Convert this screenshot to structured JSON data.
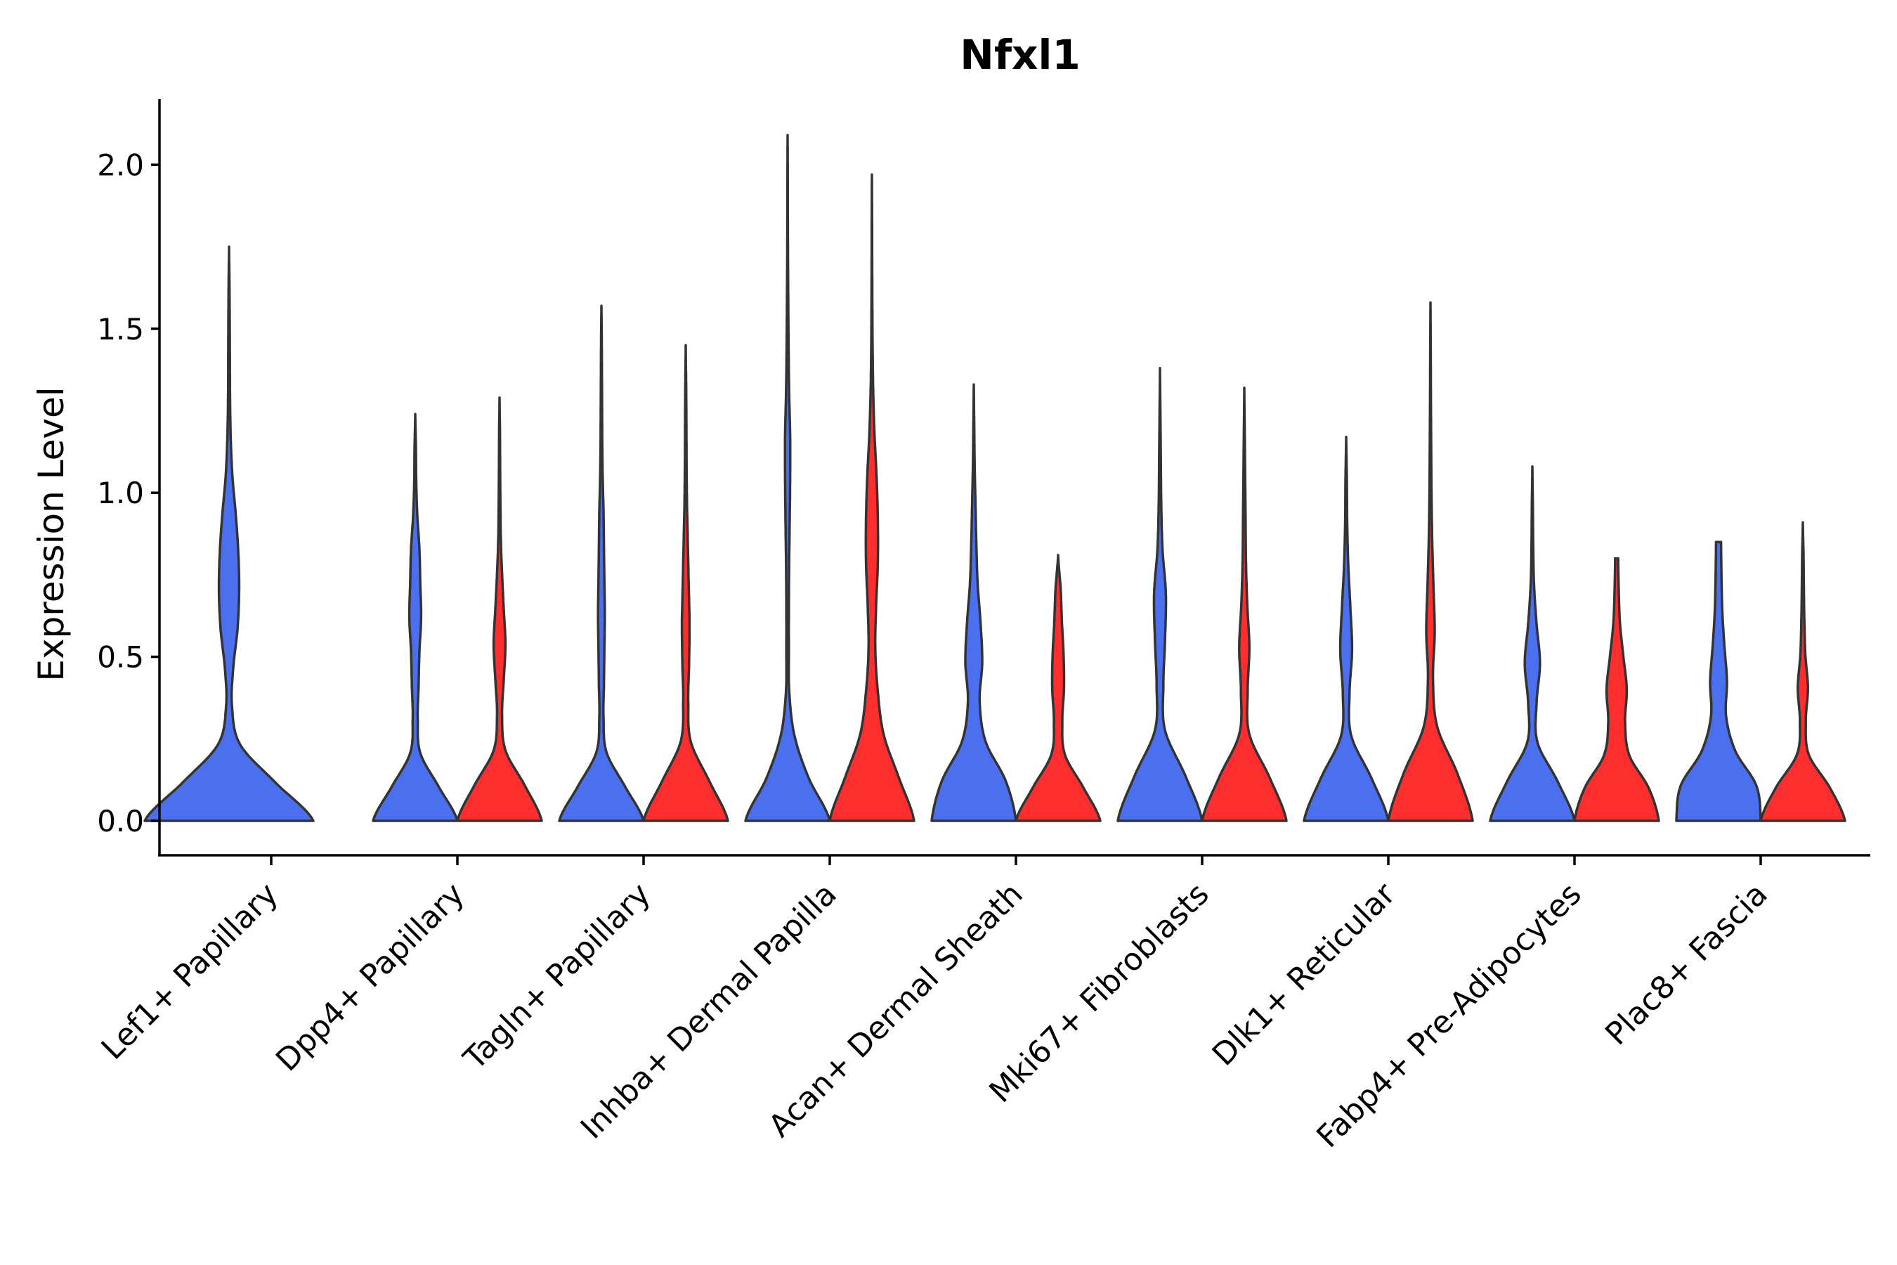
{
  "chart_data": {
    "type": "violin",
    "title": "Nfxl1",
    "xlabel": "",
    "ylabel": "Expression Level",
    "ylim": [
      -0.105,
      2.2
    ],
    "yticks": [
      0.0,
      0.5,
      1.0,
      1.5,
      2.0
    ],
    "ytick_labels": [
      "0.0",
      "0.5",
      "1.0",
      "1.5",
      "2.0"
    ],
    "categories": [
      "Lef1+ Papillary",
      "Dpp4+ Papillary",
      "Tagln+ Papillary",
      "Inhba+ Dermal Papilla",
      "Acan+ Dermal Sheath",
      "Mki67+ Fibroblasts",
      "Dlk1+ Reticular",
      "Fabp4+ Pre-Adipocytes",
      "Plac8+ Fascia"
    ],
    "colors": {
      "blue": "#4A70F0",
      "red": "#FF2E2E",
      "outline": "#333333"
    },
    "violins": [
      {
        "category": 0,
        "color": "blue",
        "max": 1.75,
        "widths": [
          1.0,
          0.55,
          0.13,
          0.035,
          0.05,
          0.1,
          0.12,
          0.11,
          0.08,
          0.04,
          0.02,
          0.012,
          0.01,
          0.008,
          0.005,
          0
        ]
      },
      {
        "category": 1,
        "color": "blue",
        "max": 1.24,
        "widths": [
          0.5,
          0.28,
          0.06,
          0.03,
          0.04,
          0.05,
          0.07,
          0.06,
          0.05,
          0.025,
          0.012,
          0.008,
          0
        ]
      },
      {
        "category": 1,
        "color": "red",
        "max": 1.29,
        "widths": [
          0.5,
          0.3,
          0.07,
          0.03,
          0.05,
          0.07,
          0.05,
          0.03,
          0.015,
          0.01,
          0.007,
          0.005,
          0
        ]
      },
      {
        "category": 2,
        "color": "blue",
        "max": 1.57,
        "widths": [
          0.5,
          0.28,
          0.06,
          0.025,
          0.03,
          0.035,
          0.04,
          0.035,
          0.03,
          0.025,
          0.015,
          0.01,
          0.008,
          0.006,
          0.004,
          0
        ]
      },
      {
        "category": 2,
        "color": "red",
        "max": 1.45,
        "widths": [
          0.5,
          0.28,
          0.06,
          0.03,
          0.04,
          0.045,
          0.035,
          0.025,
          0.015,
          0.01,
          0.008,
          0.005,
          0
        ]
      },
      {
        "category": 3,
        "color": "blue",
        "max": 2.09,
        "widths": [
          0.5,
          0.25,
          0.08,
          0.02,
          0.015,
          0.015,
          0.018,
          0.025,
          0.03,
          0.03,
          0.018,
          0.012,
          0.008,
          0.005,
          0.003,
          0.002,
          0
        ]
      },
      {
        "category": 3,
        "color": "red",
        "max": 1.97,
        "widths": [
          0.5,
          0.32,
          0.14,
          0.07,
          0.04,
          0.05,
          0.07,
          0.07,
          0.055,
          0.03,
          0.015,
          0.008,
          0.005,
          0.003,
          0.002,
          0
        ]
      },
      {
        "category": 4,
        "color": "blue",
        "max": 1.33,
        "widths": [
          0.5,
          0.38,
          0.14,
          0.07,
          0.1,
          0.08,
          0.045,
          0.03,
          0.02,
          0.01,
          0.005,
          0
        ]
      },
      {
        "category": 4,
        "color": "red",
        "max": 0.81,
        "widths": [
          0.5,
          0.3,
          0.08,
          0.05,
          0.07,
          0.065,
          0.045,
          0.03,
          0
        ]
      },
      {
        "category": 5,
        "color": "blue",
        "max": 1.38,
        "widths": [
          0.5,
          0.3,
          0.06,
          0.04,
          0.06,
          0.07,
          0.03,
          0.015,
          0.01,
          0.005,
          0
        ]
      },
      {
        "category": 5,
        "color": "red",
        "max": 1.32,
        "widths": [
          0.5,
          0.3,
          0.06,
          0.04,
          0.06,
          0.035,
          0.02,
          0.015,
          0.01,
          0.005,
          0
        ]
      },
      {
        "category": 6,
        "color": "blue",
        "max": 1.17,
        "widths": [
          0.5,
          0.3,
          0.06,
          0.04,
          0.07,
          0.05,
          0.025,
          0.012,
          0.008,
          0
        ]
      },
      {
        "category": 6,
        "color": "red",
        "max": 1.58,
        "widths": [
          0.5,
          0.32,
          0.08,
          0.03,
          0.05,
          0.035,
          0.02,
          0.012,
          0.008,
          0.005,
          0.003,
          0
        ]
      },
      {
        "category": 7,
        "color": "blue",
        "max": 1.08,
        "widths": [
          0.5,
          0.3,
          0.06,
          0.05,
          0.09,
          0.05,
          0.02,
          0.01,
          0.006,
          0
        ]
      },
      {
        "category": 7,
        "color": "red",
        "max": 0.8,
        "widths": [
          0.5,
          0.38,
          0.15,
          0.1,
          0.12,
          0.08,
          0.04,
          0.025,
          0.018
        ]
      },
      {
        "category": 8,
        "color": "blue",
        "max": 0.85,
        "widths": [
          0.5,
          0.45,
          0.2,
          0.09,
          0.1,
          0.07,
          0.045,
          0.035,
          0.03
        ]
      },
      {
        "category": 8,
        "color": "red",
        "max": 0.91,
        "widths": [
          0.5,
          0.32,
          0.07,
          0.035,
          0.06,
          0.03,
          0.018,
          0.012,
          0.008,
          0
        ]
      }
    ]
  }
}
